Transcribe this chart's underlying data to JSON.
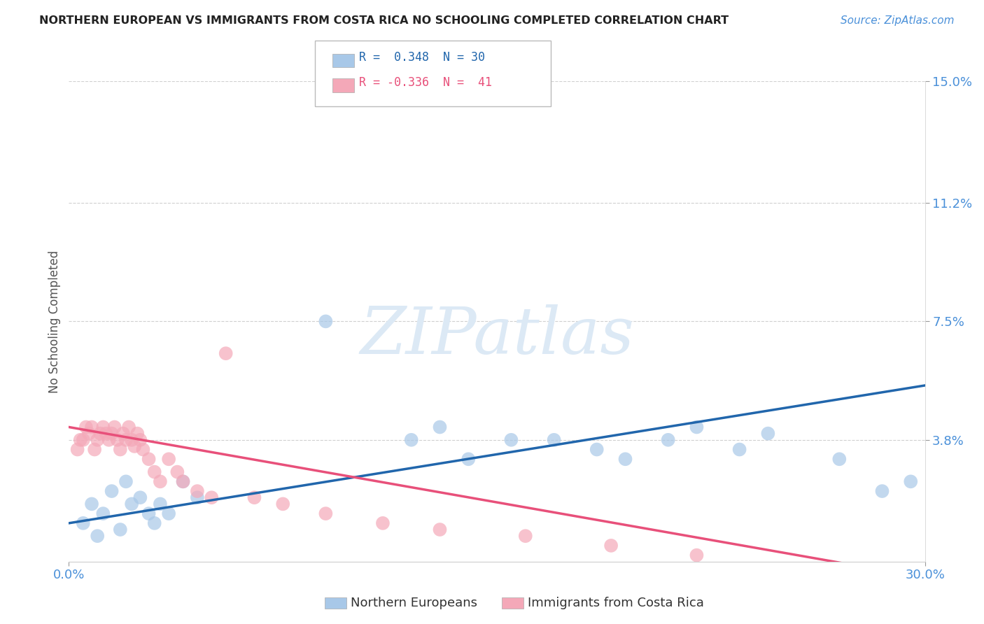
{
  "title": "NORTHERN EUROPEAN VS IMMIGRANTS FROM COSTA RICA NO SCHOOLING COMPLETED CORRELATION CHART",
  "source": "Source: ZipAtlas.com",
  "ylabel": "No Schooling Completed",
  "xlim": [
    0.0,
    0.3
  ],
  "ylim": [
    0.0,
    0.15
  ],
  "yticks": [
    0.038,
    0.075,
    0.112,
    0.15
  ],
  "ytick_labels": [
    "3.8%",
    "7.5%",
    "11.2%",
    "15.0%"
  ],
  "blue_color": "#a8c8e8",
  "pink_color": "#f4a8b8",
  "line_blue": "#2166ac",
  "line_pink": "#e8507a",
  "blue_r": 0.348,
  "blue_n": 30,
  "pink_r": -0.336,
  "pink_n": 41,
  "blue_points_x": [
    0.005,
    0.008,
    0.01,
    0.012,
    0.015,
    0.018,
    0.02,
    0.022,
    0.025,
    0.028,
    0.03,
    0.032,
    0.035,
    0.04,
    0.045,
    0.09,
    0.12,
    0.13,
    0.14,
    0.155,
    0.17,
    0.185,
    0.195,
    0.21,
    0.22,
    0.235,
    0.245,
    0.27,
    0.285,
    0.295
  ],
  "blue_points_y": [
    0.012,
    0.018,
    0.008,
    0.015,
    0.022,
    0.01,
    0.025,
    0.018,
    0.02,
    0.015,
    0.012,
    0.018,
    0.015,
    0.025,
    0.02,
    0.075,
    0.038,
    0.042,
    0.032,
    0.038,
    0.038,
    0.035,
    0.032,
    0.038,
    0.042,
    0.035,
    0.04,
    0.032,
    0.022,
    0.025
  ],
  "pink_points_x": [
    0.003,
    0.004,
    0.005,
    0.006,
    0.007,
    0.008,
    0.009,
    0.01,
    0.011,
    0.012,
    0.013,
    0.014,
    0.015,
    0.016,
    0.017,
    0.018,
    0.019,
    0.02,
    0.021,
    0.022,
    0.023,
    0.024,
    0.025,
    0.026,
    0.028,
    0.03,
    0.032,
    0.035,
    0.038,
    0.04,
    0.045,
    0.05,
    0.055,
    0.065,
    0.075,
    0.09,
    0.11,
    0.13,
    0.16,
    0.19,
    0.22
  ],
  "pink_points_y": [
    0.035,
    0.038,
    0.038,
    0.042,
    0.04,
    0.042,
    0.035,
    0.038,
    0.04,
    0.042,
    0.04,
    0.038,
    0.04,
    0.042,
    0.038,
    0.035,
    0.04,
    0.038,
    0.042,
    0.038,
    0.036,
    0.04,
    0.038,
    0.035,
    0.032,
    0.028,
    0.025,
    0.032,
    0.028,
    0.025,
    0.022,
    0.02,
    0.065,
    0.02,
    0.018,
    0.015,
    0.012,
    0.01,
    0.008,
    0.005,
    0.002
  ],
  "background_color": "#ffffff",
  "grid_color": "#d0d0d0",
  "watermark_color": "#dce9f5"
}
